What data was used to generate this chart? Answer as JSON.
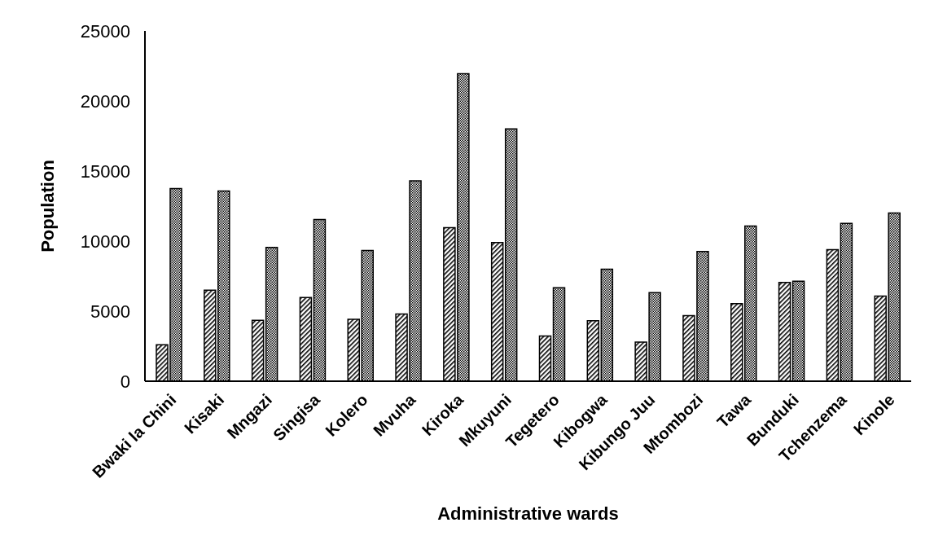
{
  "chart_data": {
    "type": "bar",
    "xlabel": "Administrative wards",
    "ylabel": "Population",
    "categories": [
      "Bwaki la Chini",
      "Kisaki",
      "Mngazi",
      "Singisa",
      "Kolero",
      "Mvuha",
      "Kiroka",
      "Mkuyuni",
      "Tegetero",
      "Kibogwa",
      "Kibungo Juu",
      "Mtombozi",
      "Tawa",
      "Bunduki",
      "Tchenzema",
      "Kinole"
    ],
    "series": [
      {
        "color": "#000000",
        "values": [
          2600,
          6500,
          4350,
          5970,
          4420,
          4800,
          10960,
          9900,
          3220,
          4310,
          2790,
          4680,
          5540,
          7050,
          9390,
          6070
        ]
      },
      {
        "color": "#000000",
        "values": [
          13750,
          13570,
          9550,
          11540,
          9330,
          14300,
          21950,
          18010,
          6670,
          8000,
          6320,
          9260,
          11070,
          7140,
          11270,
          12000
        ]
      }
    ],
    "ylim": [
      0,
      25000
    ],
    "yticks": [
      0,
      5000,
      10000,
      15000,
      20000,
      25000
    ],
    "grid": false,
    "legend": false
  }
}
